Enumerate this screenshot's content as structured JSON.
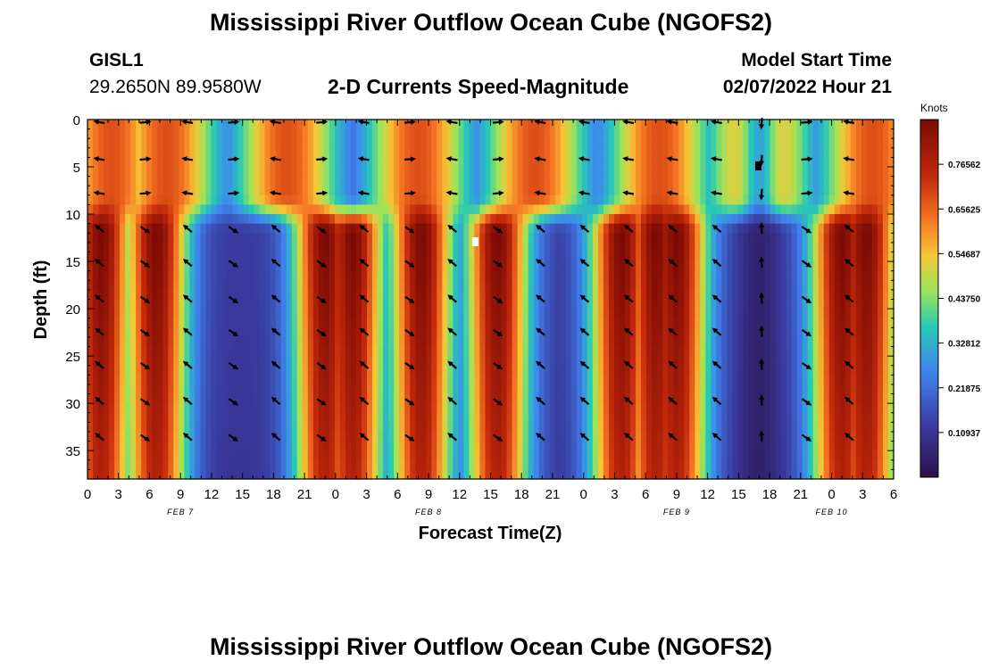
{
  "chart_data": {
    "type": "heatmap",
    "title": "Mississippi River Outflow Ocean Cube (NGOFS2)",
    "subtitle": "2-D Currents Speed-Magnitude",
    "station": "GISL1",
    "location": "29.2650N  89.9580W",
    "model_start_label": "Model Start Time",
    "model_start_value": "02/07/2022 Hour 21",
    "xlabel": "Forecast Time(Z)",
    "ylabel": "Depth (ft)",
    "x_tick_labels": [
      "0",
      "3",
      "6",
      "9",
      "12",
      "15",
      "18",
      "21",
      "0",
      "3",
      "6",
      "9",
      "12",
      "15",
      "18",
      "21",
      "0",
      "3",
      "6",
      "9",
      "12",
      "15",
      "18",
      "21",
      "0",
      "3",
      "6"
    ],
    "date_labels": [
      {
        "label": "FEB 7",
        "hour": 27
      },
      {
        "label": "FEB 8",
        "hour": 99
      },
      {
        "label": "FEB 9",
        "hour": 171
      },
      {
        "label": "FEB 10",
        "hour": 216
      }
    ],
    "x_range_hours": [
      0,
      234
    ],
    "y_ticks": [
      0,
      5,
      10,
      15,
      20,
      25,
      30,
      35
    ],
    "y_range_ft": [
      0,
      38
    ],
    "colorbar": {
      "unit_label": "Knots",
      "ticks": [
        "0.10937",
        "0.21875",
        "0.32812",
        "0.43750",
        "0.54687",
        "0.65625",
        "0.76562"
      ],
      "range": [
        0,
        0.875
      ]
    },
    "surface_peak_hours": [
      7,
      23,
      58,
      96,
      130,
      166,
      195,
      228
    ],
    "bottom_peak_hours": [
      4,
      20,
      69,
      77,
      97,
      119,
      155,
      165,
      171,
      219,
      226
    ],
    "calm_hour": 195,
    "flood_sign_hours": [
      0,
      15
    ],
    "arrow_rows_ft": [
      0.3,
      4.2,
      7.8,
      11.6,
      15.2,
      19.0,
      22.5,
      26.0,
      29.8,
      33.6
    ],
    "second_title": "Mississippi River Outflow Ocean Cube (NGOFS2)"
  }
}
